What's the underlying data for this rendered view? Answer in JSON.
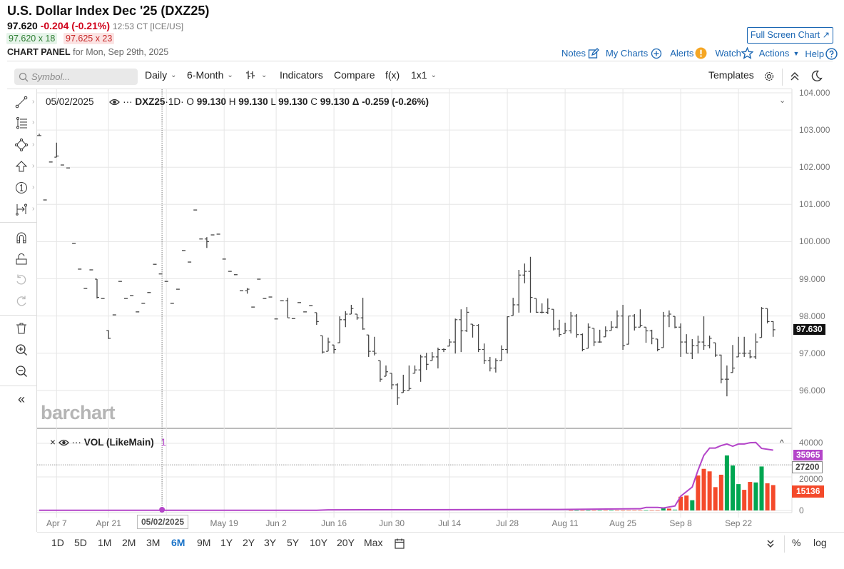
{
  "header": {
    "title": "U.S. Dollar Index Dec '25 (DXZ25)",
    "last": "97.620",
    "change": "-0.204 (-0.21%)",
    "time_exchange": "12:53 CT [ICE/US]",
    "bid": "97.620 x 18",
    "ask": "97.625 x 23",
    "panel_label": "CHART PANEL",
    "panel_date": "for Mon, Sep 29th, 2025"
  },
  "top_links": {
    "full_screen": "Full Screen Chart ↗",
    "notes": "Notes",
    "my_charts": "My Charts",
    "alerts": "Alerts",
    "watch": "Watch",
    "actions": "Actions",
    "help": "Help"
  },
  "toolbar": {
    "symbol_placeholder": "Symbol...",
    "interval": "Daily",
    "range": "6-Month",
    "indicators": "Indicators",
    "compare": "Compare",
    "fx": "f(x)",
    "layout": "1x1",
    "templates": "Templates"
  },
  "legend": {
    "date": "05/02/2025",
    "symbol": "DXZ25",
    "interval": "·1D·",
    "o_label": "O",
    "o": "99.130",
    "h_label": "H",
    "h": "99.130",
    "l_label": "L",
    "l": "99.130",
    "c_label": "C",
    "c": "99.130",
    "delta": "Δ -0.259 (-0.26%)"
  },
  "vol_legend": {
    "name": "VOL (LikeMain)",
    "value": "1"
  },
  "watermark": "barchart",
  "price_axis": [
    "104.000",
    "103.000",
    "102.000",
    "101.000",
    "100.000",
    "99.000",
    "98.000",
    "97.000",
    "96.000"
  ],
  "price_axis_values": [
    104,
    103,
    102,
    101,
    100,
    99,
    98,
    97,
    96
  ],
  "current_price_label": "97.630",
  "current_price": 97.63,
  "vol_axis": [
    "40000",
    "20000",
    "0"
  ],
  "vol_axis_values": [
    40000,
    20000,
    0
  ],
  "vol_labels": {
    "oi": "35965",
    "crosshair": "27200",
    "volume": "15136"
  },
  "vol_label_values": {
    "oi": 35965,
    "crosshair": 27200,
    "volume": 15136
  },
  "crosshair": {
    "date_label": "05/02/2025",
    "bar_index": 21
  },
  "x_axis": [
    {
      "label": "Apr 7",
      "bar": 3
    },
    {
      "label": "Apr 21",
      "bar": 12
    },
    {
      "label": "",
      "bar": 22
    },
    {
      "label": "May 19",
      "bar": 32
    },
    {
      "label": "Jun 2",
      "bar": 41
    },
    {
      "label": "Jun 16",
      "bar": 51
    },
    {
      "label": "Jun 30",
      "bar": 61
    },
    {
      "label": "Jul 14",
      "bar": 71
    },
    {
      "label": "Jul 28",
      "bar": 81
    },
    {
      "label": "Aug 11",
      "bar": 91
    },
    {
      "label": "Aug 25",
      "bar": 101
    },
    {
      "label": "Sep 8",
      "bar": 111
    },
    {
      "label": "Sep 22",
      "bar": 121
    }
  ],
  "ranges": [
    "1D",
    "5D",
    "1M",
    "2M",
    "3M",
    "6M",
    "9M",
    "1Y",
    "2Y",
    "3Y",
    "5Y",
    "10Y",
    "20Y",
    "Max"
  ],
  "active_range": "6M",
  "scale_options": {
    "percent": "%",
    "log": "log"
  },
  "colors": {
    "up": "#00a651",
    "down": "#f44a2b",
    "oi": "#b445c9",
    "link": "#1a66b3",
    "active": "#1a73c8"
  },
  "chart_data": {
    "type": "ohlc",
    "bars_hlc": [
      [
        102.9,
        102.85,
        102.85
      ],
      [
        101.12,
        101.12,
        101.12
      ],
      [
        102.14,
        102.14,
        102.14
      ],
      [
        102.66,
        102.27,
        102.3
      ],
      [
        102.06,
        102.06,
        102.06
      ],
      [
        101.98,
        101.98,
        101.98
      ],
      [
        99.95,
        99.95,
        99.95
      ],
      [
        99.26,
        99.26,
        99.26
      ],
      [
        98.74,
        98.74,
        98.74
      ],
      [
        99.24,
        99.24,
        99.24
      ],
      [
        98.99,
        98.47,
        98.5
      ],
      [
        98.47,
        98.47,
        98.47
      ],
      [
        97.61,
        97.38,
        97.4
      ],
      [
        98.03,
        98.03,
        98.03
      ],
      [
        98.93,
        98.93,
        98.93
      ],
      [
        98.47,
        98.47,
        98.47
      ],
      [
        98.55,
        98.55,
        98.55
      ],
      [
        98.11,
        98.11,
        98.11
      ],
      [
        98.34,
        98.34,
        98.34
      ],
      [
        98.63,
        98.63,
        98.63
      ],
      [
        99.39,
        99.39,
        99.39
      ],
      [
        99.13,
        99.13,
        99.13
      ],
      [
        98.93,
        98.93,
        98.93
      ],
      [
        98.34,
        98.34,
        98.34
      ],
      [
        98.72,
        98.72,
        98.72
      ],
      [
        99.76,
        99.76,
        99.76
      ],
      [
        99.45,
        99.45,
        99.45
      ],
      [
        100.85,
        100.85,
        100.85
      ],
      [
        100.07,
        100.07,
        100.07
      ],
      [
        100.12,
        99.83,
        100.0
      ],
      [
        100.18,
        100.18,
        100.18
      ],
      [
        100.2,
        100.2,
        100.2
      ],
      [
        99.53,
        99.53,
        99.53
      ],
      [
        99.2,
        99.2,
        99.2
      ],
      [
        99.11,
        99.11,
        99.11
      ],
      [
        98.68,
        98.68,
        98.68
      ],
      [
        98.75,
        98.6,
        98.72
      ],
      [
        98.24,
        98.24,
        98.24
      ],
      [
        98.99,
        98.99,
        98.99
      ],
      [
        98.47,
        98.47,
        98.47
      ],
      [
        98.51,
        98.51,
        98.51
      ],
      [
        97.92,
        97.92,
        97.92
      ],
      [
        98.41,
        98.41,
        98.41
      ],
      [
        98.49,
        97.95,
        97.95
      ],
      [
        97.93,
        97.93,
        97.93
      ],
      [
        98.36,
        98.36,
        98.36
      ],
      [
        98.11,
        98.11,
        98.11
      ],
      [
        98.28,
        98.28,
        98.28
      ],
      [
        98.09,
        97.76,
        97.85
      ],
      [
        97.47,
        96.99,
        97.03
      ],
      [
        97.42,
        97.05,
        97.3
      ],
      [
        97.22,
        96.99,
        97.1
      ],
      [
        97.99,
        97.28,
        97.9
      ],
      [
        98.13,
        97.7,
        98.05
      ],
      [
        98.3,
        98.05,
        98.2
      ],
      [
        98.05,
        97.9,
        97.95
      ],
      [
        98.49,
        97.63,
        97.65
      ],
      [
        97.49,
        96.9,
        97.05
      ],
      [
        97.44,
        96.94,
        97.0
      ],
      [
        96.8,
        96.23,
        96.3
      ],
      [
        96.67,
        96.38,
        96.5
      ],
      [
        96.46,
        96.03,
        96.15
      ],
      [
        96.19,
        95.61,
        95.8
      ],
      [
        96.42,
        95.94,
        96.0
      ],
      [
        96.67,
        96.0,
        96.05
      ],
      [
        96.67,
        96.46,
        96.55
      ],
      [
        96.96,
        96.23,
        96.9
      ],
      [
        97.01,
        96.55,
        96.7
      ],
      [
        97.03,
        96.8,
        96.9
      ],
      [
        97.15,
        96.59,
        97.1
      ],
      [
        97.13,
        97.03,
        97.1
      ],
      [
        97.38,
        97.19,
        97.3
      ],
      [
        97.93,
        96.99,
        97.9
      ],
      [
        98.18,
        97.03,
        97.6
      ],
      [
        98.24,
        97.57,
        98.1
      ],
      [
        97.78,
        97.42,
        97.75
      ],
      [
        97.78,
        97.03,
        97.1
      ],
      [
        97.26,
        96.71,
        96.8
      ],
      [
        96.9,
        96.51,
        96.6
      ],
      [
        96.86,
        96.48,
        96.8
      ],
      [
        97.21,
        96.8,
        97.1
      ],
      [
        97.99,
        96.99,
        97.98
      ],
      [
        98.49,
        98.01,
        98.3
      ],
      [
        99.24,
        98.09,
        99.1
      ],
      [
        99.41,
        98.88,
        99.2
      ],
      [
        99.59,
        98.09,
        98.5
      ],
      [
        98.47,
        98.09,
        98.1
      ],
      [
        98.34,
        98.07,
        98.1
      ],
      [
        98.47,
        98.05,
        98.2
      ],
      [
        98.18,
        97.61,
        97.65
      ],
      [
        97.9,
        97.44,
        97.5
      ],
      [
        97.82,
        97.53,
        97.6
      ],
      [
        98.11,
        97.53,
        98.0
      ],
      [
        98.05,
        97.42,
        97.5
      ],
      [
        97.53,
        97.05,
        97.1
      ],
      [
        97.8,
        97.13,
        97.7
      ],
      [
        97.67,
        97.19,
        97.3
      ],
      [
        97.63,
        97.28,
        97.3
      ],
      [
        97.72,
        97.44,
        97.6
      ],
      [
        97.86,
        97.61,
        97.7
      ],
      [
        98.15,
        97.67,
        98.0
      ],
      [
        98.3,
        97.09,
        97.2
      ],
      [
        98.01,
        97.24,
        98.0
      ],
      [
        98.05,
        97.61,
        97.7
      ],
      [
        98.18,
        97.7,
        97.75
      ],
      [
        97.7,
        97.28,
        97.6
      ],
      [
        97.63,
        97.24,
        97.4
      ],
      [
        97.38,
        97.05,
        97.1
      ],
      [
        98.11,
        97.15,
        98.0
      ],
      [
        98.15,
        97.7,
        98.05
      ],
      [
        97.99,
        97.67,
        97.7
      ],
      [
        97.8,
        96.9,
        97.3
      ],
      [
        97.51,
        96.99,
        97.0
      ],
      [
        97.38,
        96.84,
        97.2
      ],
      [
        97.47,
        96.99,
        97.3
      ],
      [
        97.99,
        97.09,
        97.2
      ],
      [
        97.47,
        97.13,
        97.4
      ],
      [
        97.28,
        96.9,
        96.95
      ],
      [
        96.96,
        96.19,
        96.3
      ],
      [
        96.67,
        95.84,
        96.3
      ],
      [
        97.22,
        96.48,
        96.6
      ],
      [
        97.44,
        96.9,
        97.0
      ],
      [
        97.44,
        96.9,
        97.0
      ],
      [
        97.09,
        96.86,
        96.9
      ],
      [
        97.53,
        96.84,
        97.3
      ],
      [
        98.24,
        97.42,
        98.2
      ],
      [
        98.2,
        97.8,
        97.85
      ],
      [
        97.86,
        97.44,
        97.63
      ]
    ],
    "volume_first_bar": 92,
    "volume": [
      120,
      90,
      150,
      110,
      130,
      160,
      140,
      180,
      200,
      170,
      220,
      260,
      240,
      200,
      260,
      230,
      1400,
      1100,
      550,
      8200,
      8900,
      6100,
      20850,
      24800,
      23300,
      13900,
      21300,
      32800,
      26800,
      15700,
      12300,
      17000,
      16700,
      26200,
      16200,
      15136
    ],
    "volume_direction": [
      "d",
      "u",
      "d",
      "u",
      "d",
      "u",
      "d",
      "u",
      "d",
      "d",
      "d",
      "d",
      "d",
      "u",
      "d",
      "d",
      "u",
      "d",
      "u",
      "d",
      "d",
      "u",
      "d",
      "d",
      "d",
      "d",
      "d",
      "u",
      "u",
      "u",
      "d",
      "d",
      "u",
      "u",
      "d",
      "d"
    ],
    "open_interest": [
      [
        0,
        100
      ],
      [
        48,
        100
      ],
      [
        50,
        400
      ],
      [
        90,
        600
      ],
      [
        104,
        1000
      ],
      [
        105,
        1800
      ],
      [
        107,
        1800
      ],
      [
        108,
        1500
      ],
      [
        110,
        2700
      ],
      [
        111,
        8500
      ],
      [
        113,
        14000
      ],
      [
        114,
        24000
      ],
      [
        115,
        32800
      ],
      [
        116,
        37200
      ],
      [
        117,
        37200
      ],
      [
        118,
        38700
      ],
      [
        119,
        39600
      ],
      [
        120,
        38300
      ],
      [
        121,
        39600
      ],
      [
        122,
        39600
      ],
      [
        123,
        40400
      ],
      [
        124,
        40500
      ],
      [
        125,
        37000
      ],
      [
        127,
        35965
      ]
    ],
    "price_ylim": [
      94.98,
      104.1
    ],
    "vol_ylim": [
      0,
      40000
    ]
  }
}
